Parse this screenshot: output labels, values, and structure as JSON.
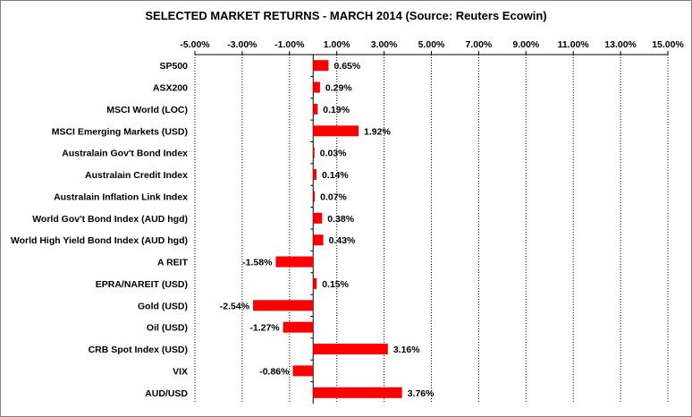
{
  "chart_data": {
    "type": "bar",
    "orientation": "horizontal",
    "title": "SELECTED MARKET RETURNS  -  MARCH 2014 (Source: Reuters Ecowin)",
    "xlim": [
      -5.0,
      15.0
    ],
    "xticks": [
      "-5.00%",
      "-3.00%",
      "-1.00%",
      "1.00%",
      "3.00%",
      "5.00%",
      "7.00%",
      "9.00%",
      "11.00%",
      "13.00%",
      "15.00%"
    ],
    "xtick_values": [
      -5,
      -3,
      -1,
      1,
      3,
      5,
      7,
      9,
      11,
      13,
      15
    ],
    "grid": true,
    "bar_color": "#FF0000",
    "categories": [
      "SP500",
      "ASX200",
      "MSCI World (LOC)",
      "MSCI Emerging Markets (USD)",
      "Australain Gov't Bond Index",
      "Australain Credit Index",
      "Australain Inflation Link Index",
      "World Gov't Bond Index (AUD hgd)",
      "World High Yield Bond Index (AUD hgd)",
      "A REIT",
      "EPRA/NAREIT (USD)",
      "Gold (USD)",
      "Oil (USD)",
      "CRB Spot Index (USD)",
      "VIX",
      "AUD/USD"
    ],
    "values": [
      0.65,
      0.29,
      0.19,
      1.92,
      0.03,
      0.14,
      0.07,
      0.38,
      0.43,
      -1.58,
      0.15,
      -2.54,
      -1.27,
      3.16,
      -0.86,
      3.76
    ],
    "labels": [
      "0.65%",
      "0.29%",
      "0.19%",
      "1.92%",
      "0.03%",
      "0.14%",
      "0.07%",
      "0.38%",
      "0.43%",
      "-1.58%",
      "0.15%",
      "-2.54%",
      "-1.27%",
      "3.16%",
      "-0.86%",
      "3.76%"
    ]
  }
}
